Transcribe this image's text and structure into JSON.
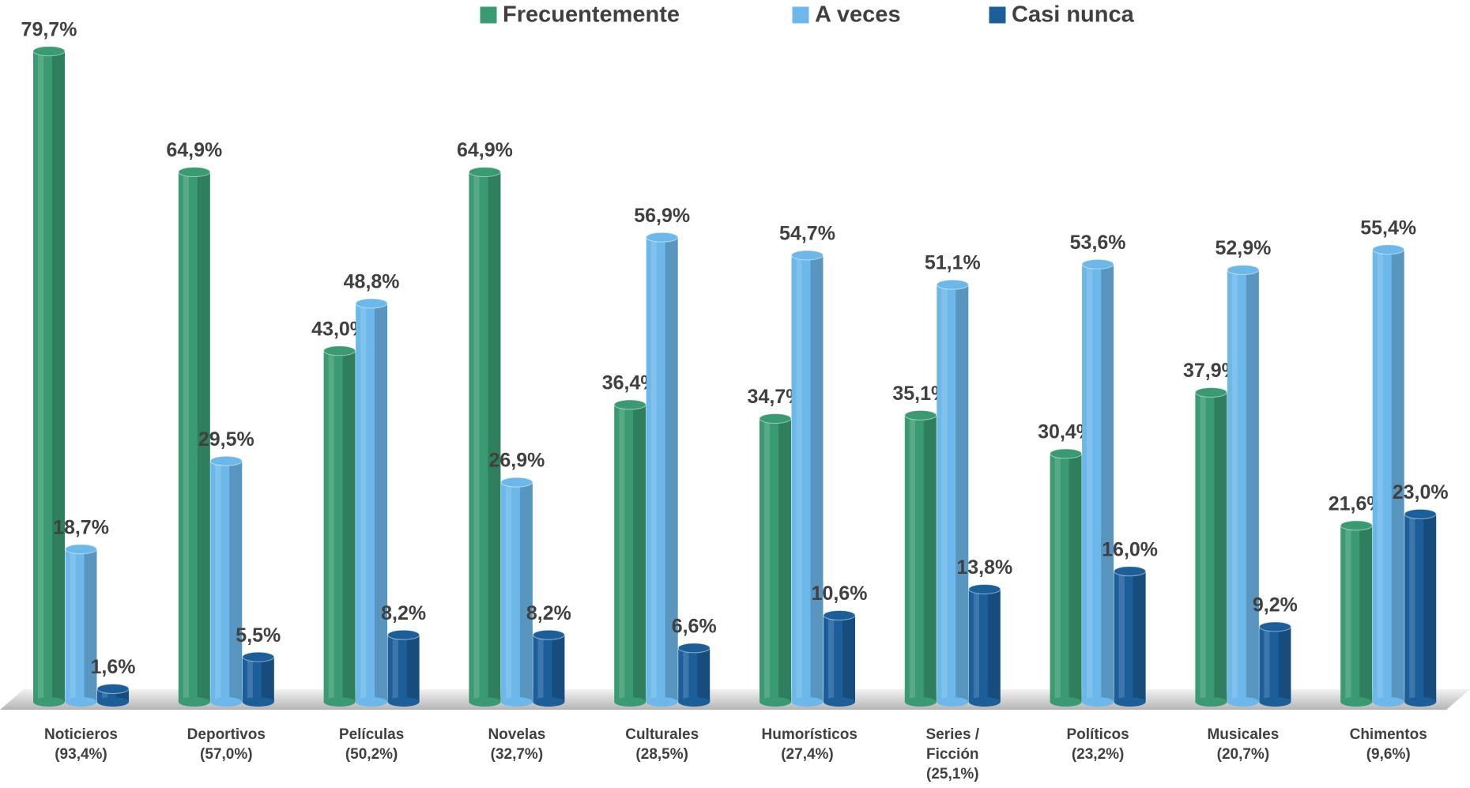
{
  "chart_data": {
    "type": "bar",
    "categories": [
      "Noticieros (93,4%)",
      "Deportivos (57,0%)",
      "Películas (50,2%)",
      "Novelas (32,7%)",
      "Culturales (28,5%)",
      "Humorísticos (27,4%)",
      "Series / Ficción (25,1%)",
      "Políticos (23,2%)",
      "Musicales (20,7%)",
      "Chimentos (9,6%)"
    ],
    "series": [
      {
        "name": "Frecuentemente",
        "color": "#3a9a72",
        "values": [
          79.7,
          64.9,
          43.0,
          64.9,
          36.4,
          34.7,
          35.1,
          30.4,
          37.9,
          21.6
        ],
        "value_labels": [
          "79,7%",
          "64,9%",
          "43,0%",
          "64,9%",
          "36,4%",
          "34,7%",
          "35,1%",
          "30,4%",
          "37,9%",
          "21,6%"
        ]
      },
      {
        "name": "A veces",
        "color": "#6cb8ea",
        "values": [
          18.7,
          29.5,
          48.8,
          26.9,
          56.9,
          54.7,
          51.1,
          53.6,
          52.9,
          55.4
        ],
        "value_labels": [
          "18,7%",
          "29,5%",
          "48,8%",
          "26,9%",
          "56,9%",
          "54,7%",
          "51,1%",
          "53,6%",
          "52,9%",
          "55,4%"
        ]
      },
      {
        "name": "Casi nunca",
        "color": "#1c5e99",
        "values": [
          1.6,
          5.5,
          8.2,
          8.2,
          6.6,
          10.6,
          13.8,
          16.0,
          9.2,
          23.0
        ],
        "value_labels": [
          "1,6%",
          "5,5%",
          "8,2%",
          "8,2%",
          "6,6%",
          "10,6%",
          "13,8%",
          "16,0%",
          "9,2%",
          "23,0%"
        ]
      }
    ]
  }
}
